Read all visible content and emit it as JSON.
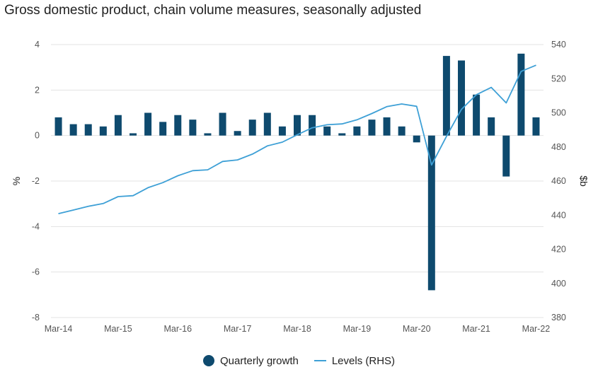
{
  "title": "Gross domestic product, chain volume measures, seasonally adjusted",
  "colors": {
    "bars": "#0e4a6e",
    "line": "#3ea0d6",
    "grid": "#e3e3e3"
  },
  "legend": {
    "bars_label": "Quarterly growth",
    "line_label": "Levels (RHS)"
  },
  "chart_data": {
    "type": "bar",
    "title": "Gross domestic product, chain volume measures, seasonally adjusted",
    "categories": [
      "Mar-14",
      "Jun-14",
      "Sep-14",
      "Dec-14",
      "Mar-15",
      "Jun-15",
      "Sep-15",
      "Dec-15",
      "Mar-16",
      "Jun-16",
      "Sep-16",
      "Dec-16",
      "Mar-17",
      "Jun-17",
      "Sep-17",
      "Dec-17",
      "Mar-18",
      "Jun-18",
      "Sep-18",
      "Dec-18",
      "Mar-19",
      "Jun-19",
      "Sep-19",
      "Dec-19",
      "Mar-20",
      "Jun-20",
      "Sep-20",
      "Dec-20",
      "Mar-21",
      "Jun-21",
      "Sep-21",
      "Dec-21",
      "Mar-22"
    ],
    "x_tick_labels": [
      "Mar-14",
      "Mar-15",
      "Mar-16",
      "Mar-17",
      "Mar-18",
      "Mar-19",
      "Mar-20",
      "Mar-21",
      "Mar-22"
    ],
    "series": [
      {
        "name": "Quarterly growth",
        "type": "bar",
        "axis": "left",
        "values": [
          0.8,
          0.5,
          0.5,
          0.4,
          0.9,
          0.1,
          1.0,
          0.6,
          0.9,
          0.7,
          0.1,
          1.0,
          0.2,
          0.7,
          1.0,
          0.4,
          0.9,
          0.9,
          0.4,
          0.1,
          0.4,
          0.7,
          0.8,
          0.4,
          -0.3,
          -6.8,
          3.5,
          3.3,
          1.8,
          0.8,
          -1.8,
          3.6,
          0.8
        ]
      },
      {
        "name": "Levels (RHS)",
        "type": "line",
        "axis": "right",
        "values": [
          440.9,
          443.0,
          445.2,
          446.8,
          450.9,
          451.4,
          456.1,
          459.1,
          463.1,
          466.1,
          466.6,
          471.5,
          472.4,
          475.8,
          480.6,
          482.8,
          487.1,
          491.2,
          493.0,
          493.5,
          495.9,
          499.6,
          503.6,
          505.2,
          503.8,
          469.4,
          486.2,
          502.0,
          510.6,
          514.9,
          505.8,
          524.3,
          527.9
        ]
      }
    ],
    "y_left": {
      "label": "%",
      "ylim": [
        -8,
        4
      ],
      "ticks": [
        -8,
        -6,
        -4,
        -2,
        0,
        2,
        4
      ]
    },
    "y_right": {
      "label": "$b",
      "ylim": [
        380,
        540
      ],
      "ticks": [
        380,
        400,
        420,
        440,
        460,
        480,
        500,
        520,
        540
      ]
    },
    "grid": true,
    "legend_position": "bottom-center"
  }
}
